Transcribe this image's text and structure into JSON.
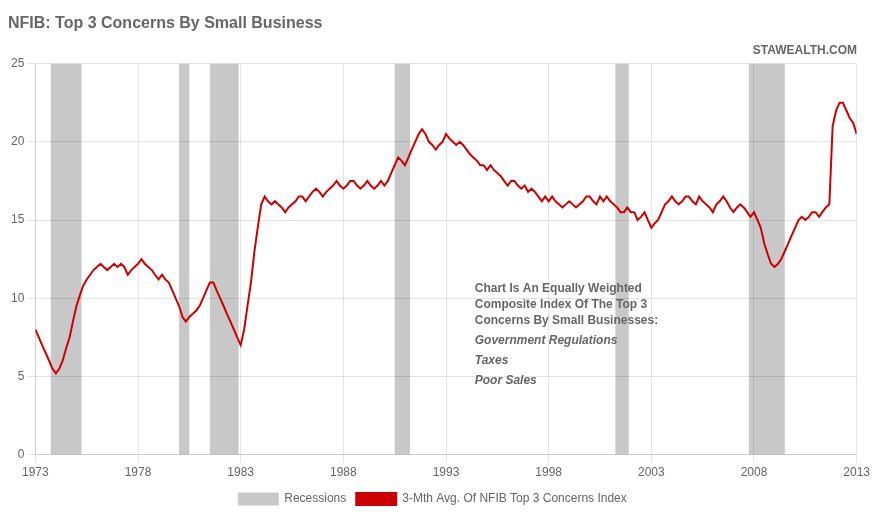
{
  "chart_data": {
    "type": "line",
    "title": "NFIB: Top 3 Concerns By Small Business",
    "subtitle": "STAWEALTH.COM",
    "annotations": [
      "Chart Is An Equally Weighted\nComposite Index Of The Top 3\nConcerns By Small Businesses:",
      "Government Regulations",
      "Taxes",
      "Poor Sales"
    ],
    "bands": {
      "name": "Recessions",
      "color": "#c8c8c8",
      "ranges": [
        [
          1973.75,
          1975.25
        ],
        [
          1980.0,
          1980.5
        ],
        [
          1981.5,
          1982.9
        ],
        [
          1990.5,
          1991.25
        ],
        [
          2001.25,
          2001.9
        ],
        [
          2007.75,
          2009.5
        ]
      ]
    },
    "x": [
      1973.0,
      1973.17,
      1973.33,
      1973.5,
      1973.67,
      1973.83,
      1974.0,
      1974.17,
      1974.33,
      1974.5,
      1974.67,
      1974.83,
      1975.0,
      1975.17,
      1975.33,
      1975.5,
      1975.67,
      1975.83,
      1976.0,
      1976.17,
      1976.33,
      1976.5,
      1976.67,
      1976.83,
      1977.0,
      1977.17,
      1977.33,
      1977.5,
      1977.67,
      1977.83,
      1978.0,
      1978.17,
      1978.33,
      1978.5,
      1978.67,
      1978.83,
      1979.0,
      1979.17,
      1979.33,
      1979.5,
      1979.67,
      1979.83,
      1980.0,
      1980.17,
      1980.33,
      1980.5,
      1980.67,
      1980.83,
      1981.0,
      1981.17,
      1981.33,
      1981.5,
      1981.67,
      1981.83,
      1982.0,
      1982.17,
      1982.33,
      1982.5,
      1982.67,
      1982.83,
      1983.0,
      1983.17,
      1983.33,
      1983.5,
      1983.67,
      1983.83,
      1984.0,
      1984.17,
      1984.33,
      1984.5,
      1984.67,
      1984.83,
      1985.0,
      1985.17,
      1985.33,
      1985.5,
      1985.67,
      1985.83,
      1986.0,
      1986.17,
      1986.33,
      1986.5,
      1986.67,
      1986.83,
      1987.0,
      1987.17,
      1987.33,
      1987.5,
      1987.67,
      1987.83,
      1988.0,
      1988.17,
      1988.33,
      1988.5,
      1988.67,
      1988.83,
      1989.0,
      1989.17,
      1989.33,
      1989.5,
      1989.67,
      1989.83,
      1990.0,
      1990.17,
      1990.33,
      1990.5,
      1990.67,
      1990.83,
      1991.0,
      1991.17,
      1991.33,
      1991.5,
      1991.67,
      1991.83,
      1992.0,
      1992.17,
      1992.33,
      1992.5,
      1992.67,
      1992.83,
      1993.0,
      1993.17,
      1993.33,
      1993.5,
      1993.67,
      1993.83,
      1994.0,
      1994.17,
      1994.33,
      1994.5,
      1994.67,
      1994.83,
      1995.0,
      1995.17,
      1995.33,
      1995.5,
      1995.67,
      1995.83,
      1996.0,
      1996.17,
      1996.33,
      1996.5,
      1996.67,
      1996.83,
      1997.0,
      1997.17,
      1997.33,
      1997.5,
      1997.67,
      1997.83,
      1998.0,
      1998.17,
      1998.33,
      1998.5,
      1998.67,
      1998.83,
      1999.0,
      1999.17,
      1999.33,
      1999.5,
      1999.67,
      1999.83,
      2000.0,
      2000.17,
      2000.33,
      2000.5,
      2000.67,
      2000.83,
      2001.0,
      2001.17,
      2001.33,
      2001.5,
      2001.67,
      2001.83,
      2002.0,
      2002.17,
      2002.33,
      2002.5,
      2002.67,
      2002.83,
      2003.0,
      2003.17,
      2003.33,
      2003.5,
      2003.67,
      2003.83,
      2004.0,
      2004.17,
      2004.33,
      2004.5,
      2004.67,
      2004.83,
      2005.0,
      2005.17,
      2005.33,
      2005.5,
      2005.67,
      2005.83,
      2006.0,
      2006.17,
      2006.33,
      2006.5,
      2006.67,
      2006.83,
      2007.0,
      2007.17,
      2007.33,
      2007.5,
      2007.67,
      2007.83,
      2008.0,
      2008.17,
      2008.33,
      2008.5,
      2008.67,
      2008.83,
      2009.0,
      2009.17,
      2009.33,
      2009.5,
      2009.67,
      2009.83,
      2010.0,
      2010.17,
      2010.33,
      2010.5,
      2010.67,
      2010.83,
      2011.0,
      2011.17,
      2011.33,
      2011.5,
      2011.67,
      2011.83,
      2012.0,
      2012.17,
      2012.33,
      2012.5,
      2012.67,
      2012.83,
      2013.0
    ],
    "series": [
      {
        "name": "3-Mth Avg. Of NFIB Top 3 Concerns Index",
        "color": "#cc0000",
        "values": [
          8.0,
          7.5,
          7.0,
          6.5,
          6.0,
          5.5,
          5.2,
          5.5,
          6.0,
          6.8,
          7.5,
          8.5,
          9.5,
          10.2,
          10.8,
          11.2,
          11.5,
          11.8,
          12.0,
          12.2,
          12.0,
          11.8,
          12.0,
          12.2,
          12.0,
          12.2,
          12.0,
          11.5,
          11.8,
          12.0,
          12.2,
          12.5,
          12.2,
          12.0,
          11.8,
          11.5,
          11.2,
          11.5,
          11.2,
          11.0,
          10.5,
          10.0,
          9.5,
          8.8,
          8.5,
          8.8,
          9.0,
          9.2,
          9.5,
          10.0,
          10.5,
          11.0,
          11.0,
          10.5,
          10.0,
          9.5,
          9.0,
          8.5,
          8.0,
          7.5,
          7.0,
          8.0,
          9.5,
          11.0,
          13.0,
          14.5,
          16.0,
          16.5,
          16.2,
          16.0,
          16.2,
          16.0,
          15.8,
          15.5,
          15.8,
          16.0,
          16.2,
          16.5,
          16.5,
          16.2,
          16.5,
          16.8,
          17.0,
          16.8,
          16.5,
          16.8,
          17.0,
          17.2,
          17.5,
          17.2,
          17.0,
          17.2,
          17.5,
          17.5,
          17.2,
          17.0,
          17.2,
          17.5,
          17.2,
          17.0,
          17.2,
          17.5,
          17.2,
          17.5,
          18.0,
          18.5,
          19.0,
          18.8,
          18.5,
          19.0,
          19.5,
          20.0,
          20.5,
          20.8,
          20.5,
          20.0,
          19.8,
          19.5,
          19.8,
          20.0,
          20.5,
          20.2,
          20.0,
          19.8,
          20.0,
          19.8,
          19.5,
          19.2,
          19.0,
          18.8,
          18.5,
          18.5,
          18.2,
          18.5,
          18.2,
          18.0,
          17.8,
          17.5,
          17.2,
          17.5,
          17.5,
          17.2,
          17.0,
          17.2,
          16.8,
          17.0,
          16.8,
          16.5,
          16.2,
          16.5,
          16.2,
          16.5,
          16.2,
          16.0,
          15.8,
          16.0,
          16.2,
          16.0,
          15.8,
          16.0,
          16.2,
          16.5,
          16.5,
          16.2,
          16.0,
          16.5,
          16.2,
          16.5,
          16.2,
          16.0,
          15.8,
          15.5,
          15.5,
          15.8,
          15.5,
          15.5,
          15.0,
          15.2,
          15.5,
          15.0,
          14.5,
          14.8,
          15.0,
          15.5,
          16.0,
          16.2,
          16.5,
          16.2,
          16.0,
          16.2,
          16.5,
          16.5,
          16.2,
          16.0,
          16.5,
          16.2,
          16.0,
          15.8,
          15.5,
          16.0,
          16.2,
          16.5,
          16.2,
          15.8,
          15.5,
          15.8,
          16.0,
          15.8,
          15.5,
          15.2,
          15.5,
          15.0,
          14.5,
          13.5,
          12.8,
          12.2,
          12.0,
          12.2,
          12.5,
          13.0,
          13.5,
          14.0,
          14.5,
          15.0,
          15.2,
          15.0,
          15.2,
          15.5,
          15.5,
          15.2,
          15.5,
          15.8,
          16.0,
          21.0,
          22.0,
          22.5,
          22.5,
          22.0,
          21.5,
          21.2,
          20.5
        ]
      }
    ],
    "xlim": [
      1973,
      2013
    ],
    "xticks": [
      1973,
      1978,
      1983,
      1988,
      1993,
      1998,
      2003,
      2008,
      2013
    ],
    "ylim": [
      0,
      25
    ],
    "yticks": [
      0,
      5,
      10,
      15,
      20,
      25
    ],
    "grid": true,
    "legend": "bottom"
  }
}
